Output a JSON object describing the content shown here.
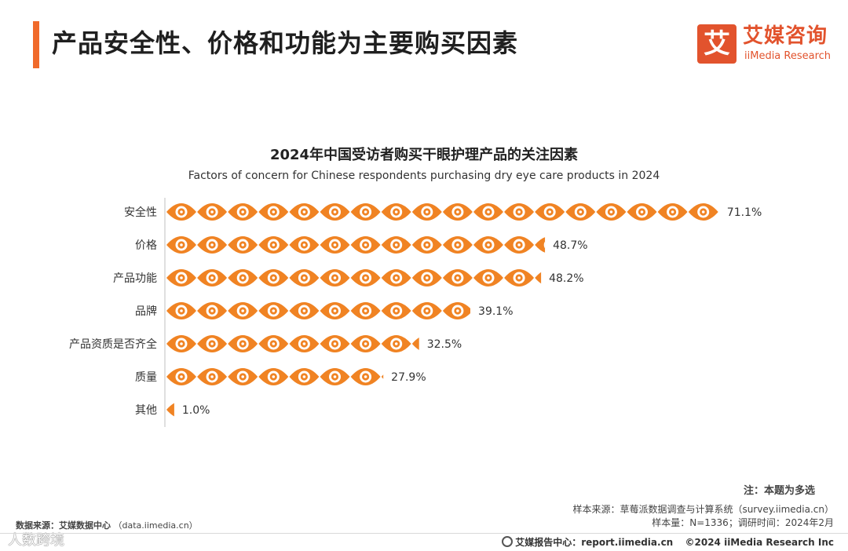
{
  "header": {
    "title": "产品安全性、价格和功能为主要购买因素",
    "logo_icon": "艾",
    "logo_cn": "艾媒咨询",
    "logo_en": "iiMedia Research"
  },
  "chart_data": {
    "type": "bar",
    "title": "2024年中国受访者购买干眼护理产品的关注因素",
    "subtitle": "Factors of concern for Chinese respondents purchasing dry eye care products in 2024",
    "categories": [
      "安全性",
      "价格",
      "产品功能",
      "品牌",
      "产品资质是否齐全",
      "质量",
      "其他"
    ],
    "values": [
      71.1,
      48.7,
      48.2,
      39.1,
      32.5,
      27.9,
      1.0
    ],
    "labels": [
      "71.1%",
      "48.7%",
      "48.2%",
      "39.1%",
      "32.5%",
      "27.9%",
      "1.0%"
    ],
    "unit": "%",
    "icon": "eye-icon",
    "color": "#f08323",
    "xlabel": "",
    "ylabel": ""
  },
  "notes": {
    "note": "注：本题为多选",
    "sample_source": "样本来源：草莓派数据调查与计算系统（survey.iimedia.cn）",
    "sample_info": "样本量：N=1336；调研时间：2024年2月"
  },
  "source": {
    "label": "数据来源：艾媒数据中心",
    "url": "（data.iimedia.cn）"
  },
  "watermark": "人数跨境",
  "footer": {
    "report_label": "艾媒报告中心：",
    "report_url": "report.iimedia.cn",
    "copyright": "©2024  iiMedia Research  Inc"
  }
}
